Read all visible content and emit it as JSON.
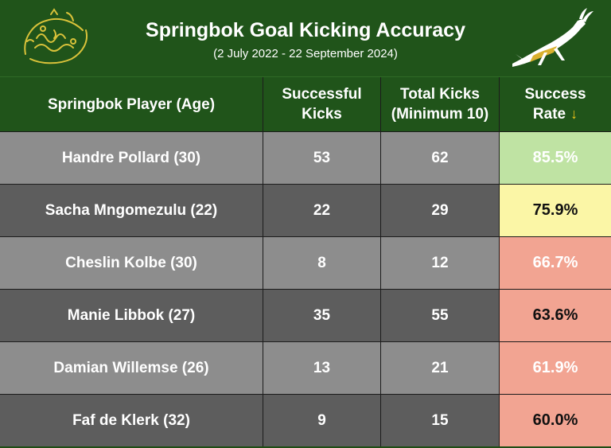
{
  "header": {
    "title": "Springbok Goal Kicking Accuracy",
    "subtitle": "(2 July 2022 - 22 September 2024)"
  },
  "colors": {
    "banner_green": "#20541a",
    "row_light": "#8d8d8d",
    "row_dark": "#5d5d5d",
    "rate_high": "#bfe3a3",
    "rate_mid": "#fbf6a6",
    "rate_low": "#f2a492",
    "sort_arrow": "#f0c419"
  },
  "icons": {
    "left_logo": "springbok-supporters-logo-icon",
    "right_logo": "springbok-antelope-icon",
    "sort": "sort-down-arrow-icon"
  },
  "chart_data": {
    "type": "table",
    "columns": [
      {
        "line1": "Springbok Player (Age)",
        "line2": ""
      },
      {
        "line1": "Successful",
        "line2": "Kicks"
      },
      {
        "line1": "Total Kicks",
        "line2": "(Minimum 10)"
      },
      {
        "line1": "Success",
        "line2": "Rate"
      }
    ],
    "sort_arrow": "↓",
    "rows": [
      {
        "player": "Handre Pollard (30)",
        "successful": "53",
        "total": "62",
        "rate": "85.5%",
        "rate_color": "#bfe3a3"
      },
      {
        "player": "Sacha Mngomezulu (22)",
        "successful": "22",
        "total": "29",
        "rate": "75.9%",
        "rate_color": "#fbf6a6"
      },
      {
        "player": "Cheslin Kolbe (30)",
        "successful": "8",
        "total": "12",
        "rate": "66.7%",
        "rate_color": "#f2a492"
      },
      {
        "player": "Manie Libbok (27)",
        "successful": "35",
        "total": "55",
        "rate": "63.6%",
        "rate_color": "#f2a492"
      },
      {
        "player": "Damian Willemse (26)",
        "successful": "13",
        "total": "21",
        "rate": "61.9%",
        "rate_color": "#f2a492"
      },
      {
        "player": "Faf de Klerk (32)",
        "successful": "9",
        "total": "15",
        "rate": "60.0%",
        "rate_color": "#f2a492"
      }
    ]
  }
}
